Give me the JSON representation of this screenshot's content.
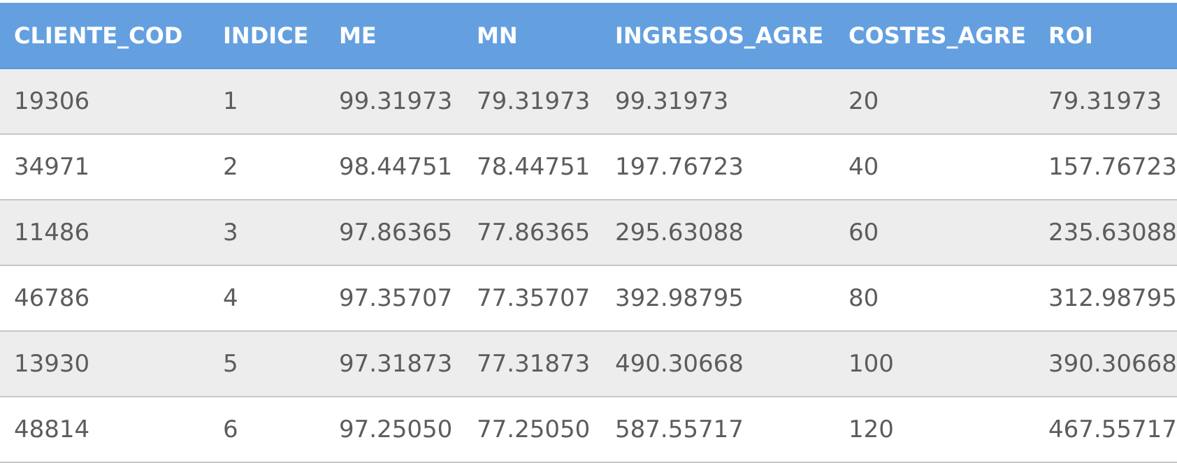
{
  "table": {
    "headers": [
      "CLIENTE_COD",
      "INDICE",
      "ME",
      "MN",
      "INGRESOS_AGRE",
      "COSTES_AGRE",
      "ROI"
    ],
    "rows": [
      [
        "19306",
        "1",
        "99.31973",
        "79.31973",
        "99.31973",
        "20",
        "79.31973"
      ],
      [
        "34971",
        "2",
        "98.44751",
        "78.44751",
        "197.76723",
        "40",
        "157.76723"
      ],
      [
        "11486",
        "3",
        "97.86365",
        "77.86365",
        "295.63088",
        "60",
        "235.63088"
      ],
      [
        "46786",
        "4",
        "97.35707",
        "77.35707",
        "392.98795",
        "80",
        "312.98795"
      ],
      [
        "13930",
        "5",
        "97.31873",
        "77.31873",
        "490.30668",
        "100",
        "390.30668"
      ],
      [
        "48814",
        "6",
        "97.25050",
        "77.25050",
        "587.55717",
        "120",
        "467.55717"
      ]
    ]
  },
  "colors": {
    "header_background": "#64a0e0",
    "header_text": "#ffffff",
    "row_odd_background": "#ededed",
    "row_even_background": "#ffffff",
    "cell_text": "#5c5c5c",
    "row_divider": "#c6c6c6"
  }
}
